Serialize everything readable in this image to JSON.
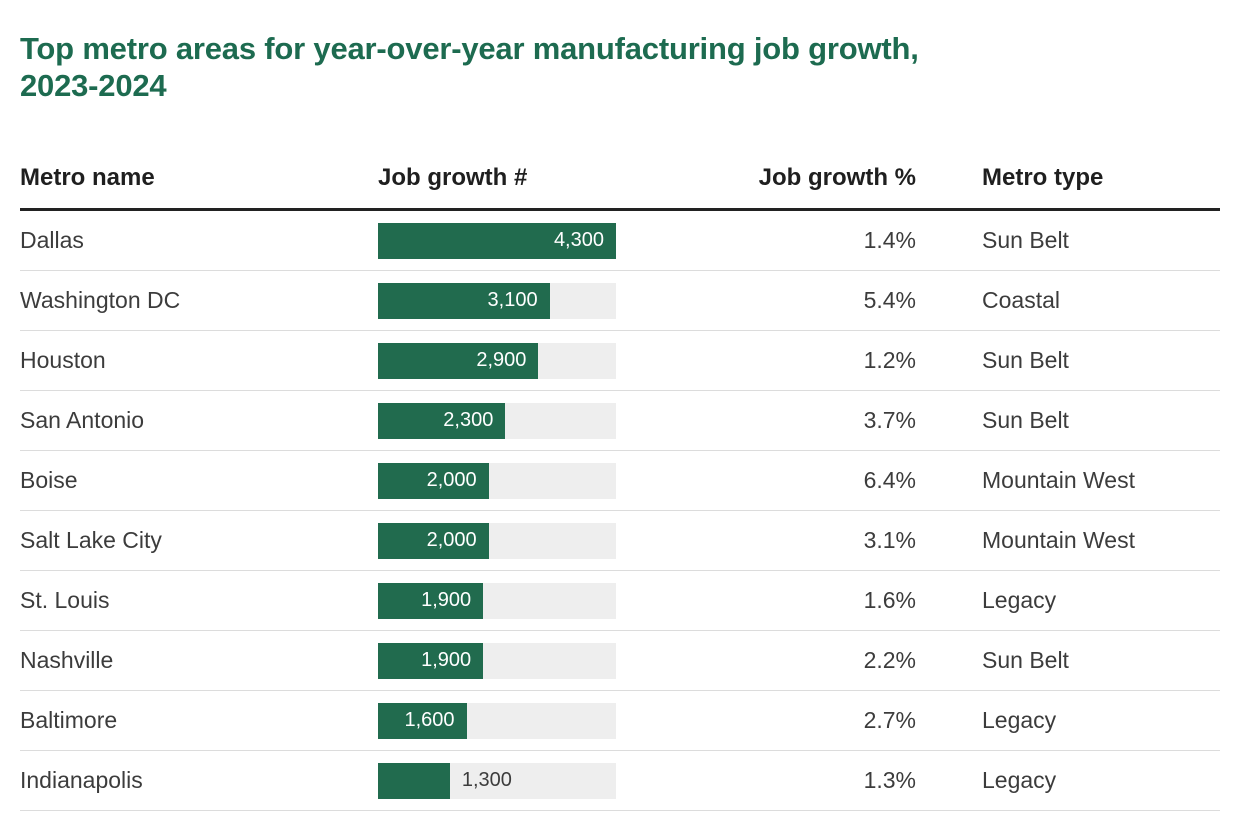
{
  "page": {
    "title_line1": "Top metro areas for year-over-year manufacturing job growth,",
    "title_line2": "2023-2024"
  },
  "colors": {
    "title_green": "#1d6b50",
    "bar_green": "#216b4e",
    "bar_track": "#eeeeee"
  },
  "table": {
    "headers": [
      "Metro name",
      "Job growth #",
      "Job growth %",
      "Metro type"
    ],
    "bar_scale_max": 4300,
    "rows": [
      {
        "metro": "Dallas",
        "job_growth_num": 4300,
        "job_growth_num_label": "4,300",
        "job_growth_pct": "1.4%",
        "metro_type": "Sun Belt",
        "bar_label_position": "inside"
      },
      {
        "metro": "Washington DC",
        "job_growth_num": 3100,
        "job_growth_num_label": "3,100",
        "job_growth_pct": "5.4%",
        "metro_type": "Coastal",
        "bar_label_position": "inside"
      },
      {
        "metro": "Houston",
        "job_growth_num": 2900,
        "job_growth_num_label": "2,900",
        "job_growth_pct": "1.2%",
        "metro_type": "Sun Belt",
        "bar_label_position": "inside"
      },
      {
        "metro": "San Antonio",
        "job_growth_num": 2300,
        "job_growth_num_label": "2,300",
        "job_growth_pct": "3.7%",
        "metro_type": "Sun Belt",
        "bar_label_position": "inside"
      },
      {
        "metro": "Boise",
        "job_growth_num": 2000,
        "job_growth_num_label": "2,000",
        "job_growth_pct": "6.4%",
        "metro_type": "Mountain West",
        "bar_label_position": "inside"
      },
      {
        "metro": "Salt Lake City",
        "job_growth_num": 2000,
        "job_growth_num_label": "2,000",
        "job_growth_pct": "3.1%",
        "metro_type": "Mountain West",
        "bar_label_position": "inside"
      },
      {
        "metro": "St. Louis",
        "job_growth_num": 1900,
        "job_growth_num_label": "1,900",
        "job_growth_pct": "1.6%",
        "metro_type": "Legacy",
        "bar_label_position": "inside"
      },
      {
        "metro": "Nashville",
        "job_growth_num": 1900,
        "job_growth_num_label": "1,900",
        "job_growth_pct": "2.2%",
        "metro_type": "Sun Belt",
        "bar_label_position": "inside"
      },
      {
        "metro": "Baltimore",
        "job_growth_num": 1600,
        "job_growth_num_label": "1,600",
        "job_growth_pct": "2.7%",
        "metro_type": "Legacy",
        "bar_label_position": "inside"
      },
      {
        "metro": "Indianapolis",
        "job_growth_num": 1300,
        "job_growth_num_label": "1,300",
        "job_growth_pct": "1.3%",
        "metro_type": "Legacy",
        "bar_label_position": "outside"
      }
    ]
  },
  "chart_data": {
    "type": "bar",
    "orientation": "horizontal",
    "title": "Top metro areas for year-over-year manufacturing job growth, 2023-2024",
    "categories": [
      "Dallas",
      "Washington DC",
      "Houston",
      "San Antonio",
      "Boise",
      "Salt Lake City",
      "St. Louis",
      "Nashville",
      "Baltimore",
      "Indianapolis"
    ],
    "series": [
      {
        "name": "Job growth #",
        "values": [
          4300,
          3100,
          2900,
          2300,
          2000,
          2000,
          1900,
          1900,
          1600,
          1300
        ]
      },
      {
        "name": "Job growth %",
        "values": [
          1.4,
          5.4,
          1.2,
          3.7,
          6.4,
          3.1,
          1.6,
          2.2,
          2.7,
          1.3
        ]
      }
    ],
    "metro_types": [
      "Sun Belt",
      "Coastal",
      "Sun Belt",
      "Sun Belt",
      "Mountain West",
      "Mountain West",
      "Legacy",
      "Sun Belt",
      "Legacy",
      "Legacy"
    ],
    "xlim": [
      0,
      4300
    ],
    "grid": false,
    "legend": false,
    "bar_color": "#216b4e"
  }
}
